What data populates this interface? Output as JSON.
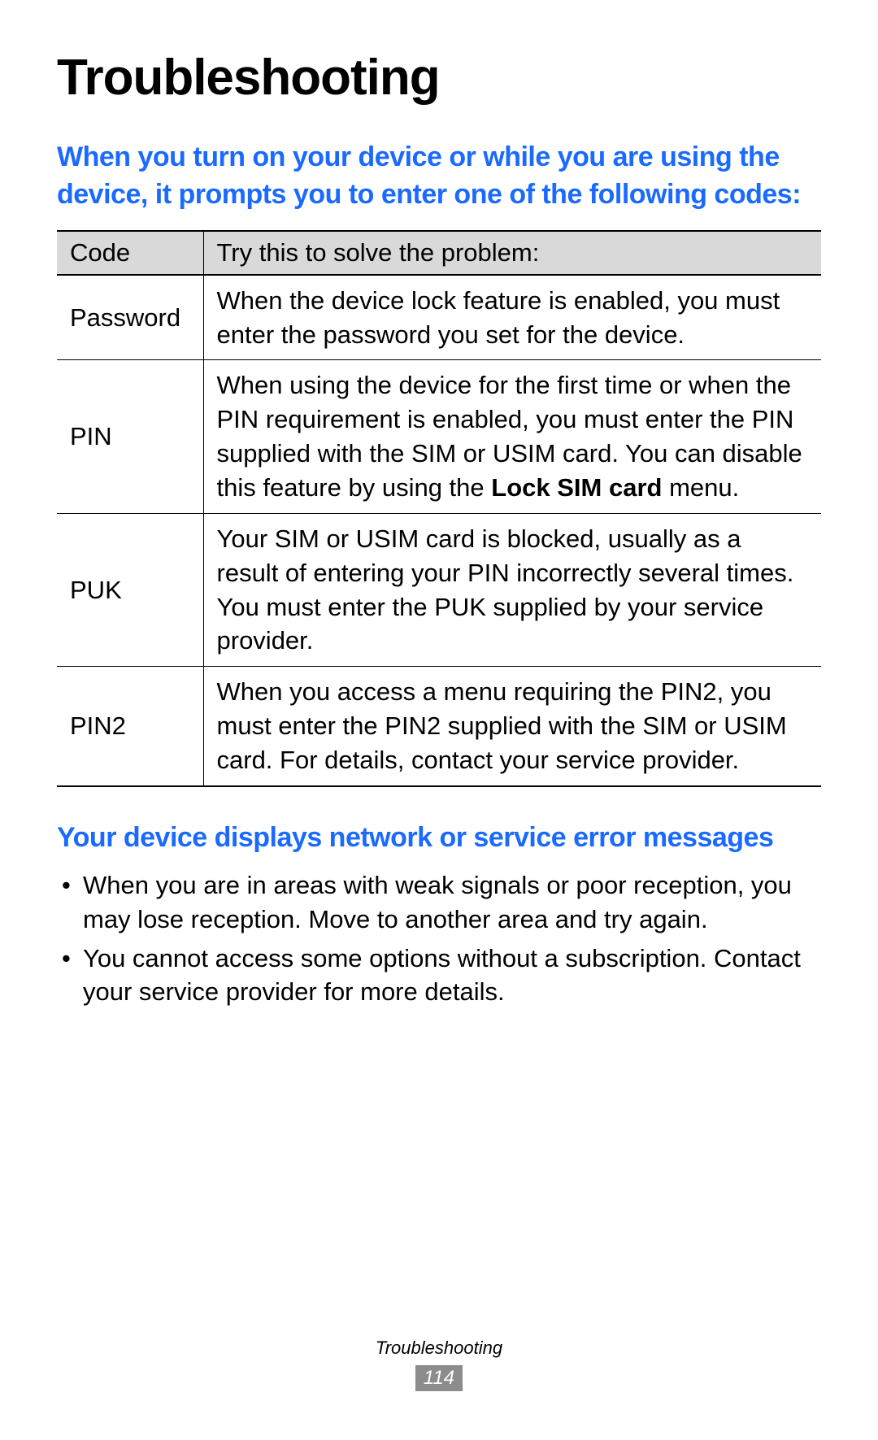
{
  "title": "Troubleshooting",
  "section1": {
    "heading": "When you turn on your device or while you are using the device, it prompts you to enter one of the following codes:",
    "table": {
      "headers": {
        "col1": "Code",
        "col2": "Try this to solve the problem:"
      },
      "rows": [
        {
          "code": "Password",
          "solution": "When the device lock feature is enabled, you must enter the password you set for the device."
        },
        {
          "code": "PIN",
          "solution_pre": "When using the device for the first time or when the PIN requirement is enabled, you must enter the PIN supplied with the SIM or USIM card. You can disable this feature by using the ",
          "solution_bold": "Lock SIM card",
          "solution_post": " menu."
        },
        {
          "code": "PUK",
          "solution": "Your SIM or USIM card is blocked, usually as a result of entering your PIN incorrectly several times. You must enter the PUK supplied by your service provider."
        },
        {
          "code": "PIN2",
          "solution": "When you access a menu requiring the PIN2, you must enter the PIN2 supplied with the SIM or USIM card. For details, contact your service provider."
        }
      ]
    }
  },
  "section2": {
    "heading": "Your device displays network or service error messages",
    "bullets": [
      "When you are in areas with weak signals or poor reception, you may lose reception. Move to another area and try again.",
      "You cannot access some options without a subscription. Contact your service provider for more details."
    ]
  },
  "footer": {
    "label": "Troubleshooting",
    "page": "114"
  },
  "colors": {
    "heading_blue": "#1b6aff",
    "table_header_bg": "#d9d9d9",
    "page_number_bg": "#8c8c8c",
    "text": "#000000",
    "background": "#ffffff"
  }
}
